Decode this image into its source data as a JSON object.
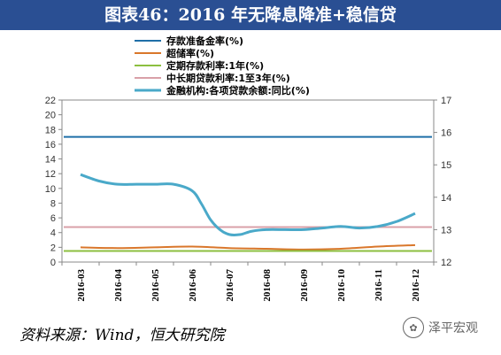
{
  "header": {
    "title": "图表46：2016 年无降息降准+稳信贷"
  },
  "footer": {
    "source": "资料来源：Wind，恒大研究院",
    "watermark": "泽平宏观"
  },
  "chart_data": {
    "type": "line",
    "categories": [
      "2016-03",
      "2016-04",
      "2016-05",
      "2016-06",
      "2016-07",
      "2016-08",
      "2016-09",
      "2016-10",
      "2016-11",
      "2016-12"
    ],
    "y_left": {
      "min": 0,
      "max": 22,
      "step": 2
    },
    "y_right": {
      "min": 12,
      "max": 17,
      "step": 1
    },
    "legend_position": "top-center",
    "grid": false,
    "series": [
      {
        "name": "存款准备金率(%)",
        "axis": "left",
        "color": "#1f6fa8",
        "width": 2,
        "x": [
          0,
          9
        ],
        "values": [
          17,
          17
        ]
      },
      {
        "name": "超储率(%)",
        "axis": "left",
        "color": "#d9772b",
        "width": 2,
        "x": [
          0,
          1,
          2,
          3,
          4,
          5,
          6,
          7,
          8,
          9
        ],
        "values": [
          2.0,
          1.9,
          2.0,
          2.1,
          1.9,
          1.8,
          1.7,
          1.8,
          2.1,
          2.3
        ]
      },
      {
        "name": "定期存款利率:1年(%)",
        "axis": "left",
        "color": "#8cbf3f",
        "width": 2,
        "x": [
          0,
          9
        ],
        "values": [
          1.5,
          1.5
        ]
      },
      {
        "name": "中长期贷款利率:1至3年(%)",
        "axis": "left",
        "color": "#d9a0a8",
        "width": 2,
        "x": [
          0,
          9
        ],
        "values": [
          4.75,
          4.75
        ]
      },
      {
        "name": "金融机构:各项贷款余额:同比(%)",
        "axis": "right",
        "color": "#4aa9c9",
        "width": 3,
        "x": [
          0,
          0.5,
          1,
          1.5,
          2,
          2.5,
          3,
          3.25,
          3.5,
          3.75,
          4,
          4.3,
          4.6,
          5,
          5.5,
          6,
          6.5,
          7,
          7.5,
          8,
          8.5,
          9
        ],
        "values": [
          14.7,
          14.5,
          14.4,
          14.4,
          14.4,
          14.4,
          14.2,
          13.8,
          13.3,
          13.0,
          12.85,
          12.85,
          12.95,
          13.0,
          13.0,
          13.0,
          13.05,
          13.1,
          13.05,
          13.1,
          13.25,
          13.5
        ]
      }
    ]
  }
}
